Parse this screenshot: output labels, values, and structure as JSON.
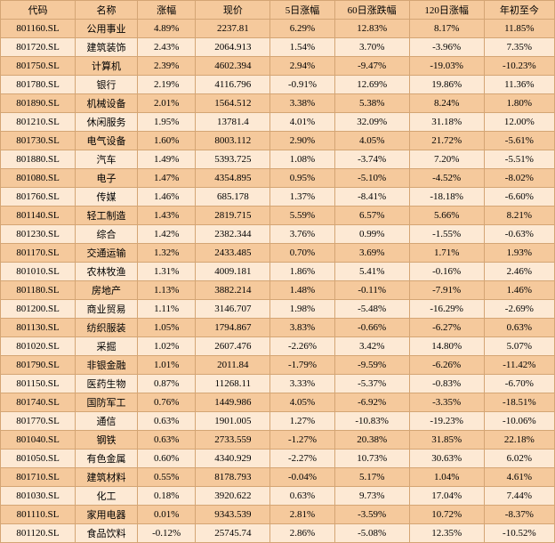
{
  "table": {
    "columns": [
      "代码",
      "名称",
      "涨幅",
      "现价",
      "5日涨幅",
      "60日涨跌幅",
      "120日涨幅",
      "年初至今"
    ],
    "col_classes": [
      "col-code",
      "col-name",
      "col-pct",
      "col-price",
      "col-pct5",
      "col-pct60",
      "col-pct120",
      "col-ytd"
    ],
    "header_bg": "#f5c99c",
    "row_odd_bg": "#fde9d4",
    "row_even_bg": "#f5c99c",
    "border_color": "#d4a574",
    "font_size": 11,
    "rows": [
      [
        "801160.SL",
        "公用事业",
        "4.89%",
        "2237.81",
        "6.29%",
        "12.83%",
        "8.17%",
        "11.85%"
      ],
      [
        "801720.SL",
        "建筑装饰",
        "2.43%",
        "2064.913",
        "1.54%",
        "3.70%",
        "-3.96%",
        "7.35%"
      ],
      [
        "801750.SL",
        "计算机",
        "2.39%",
        "4602.394",
        "2.94%",
        "-9.47%",
        "-19.03%",
        "-10.23%"
      ],
      [
        "801780.SL",
        "银行",
        "2.19%",
        "4116.796",
        "-0.91%",
        "12.69%",
        "19.86%",
        "11.36%"
      ],
      [
        "801890.SL",
        "机械设备",
        "2.01%",
        "1564.512",
        "3.38%",
        "5.38%",
        "8.24%",
        "1.80%"
      ],
      [
        "801210.SL",
        "休闲服务",
        "1.95%",
        "13781.4",
        "4.01%",
        "32.09%",
        "31.18%",
        "12.00%"
      ],
      [
        "801730.SL",
        "电气设备",
        "1.60%",
        "8003.112",
        "2.90%",
        "4.05%",
        "21.72%",
        "-5.61%"
      ],
      [
        "801880.SL",
        "汽车",
        "1.49%",
        "5393.725",
        "1.08%",
        "-3.74%",
        "7.20%",
        "-5.51%"
      ],
      [
        "801080.SL",
        "电子",
        "1.47%",
        "4354.895",
        "0.95%",
        "-5.10%",
        "-4.52%",
        "-8.02%"
      ],
      [
        "801760.SL",
        "传媒",
        "1.46%",
        "685.178",
        "1.37%",
        "-8.41%",
        "-18.18%",
        "-6.60%"
      ],
      [
        "801140.SL",
        "轻工制造",
        "1.43%",
        "2819.715",
        "5.59%",
        "6.57%",
        "5.66%",
        "8.21%"
      ],
      [
        "801230.SL",
        "综合",
        "1.42%",
        "2382.344",
        "3.76%",
        "0.99%",
        "-1.55%",
        "-0.63%"
      ],
      [
        "801170.SL",
        "交通运输",
        "1.32%",
        "2433.485",
        "0.70%",
        "3.69%",
        "1.71%",
        "1.93%"
      ],
      [
        "801010.SL",
        "农林牧渔",
        "1.31%",
        "4009.181",
        "1.86%",
        "5.41%",
        "-0.16%",
        "2.46%"
      ],
      [
        "801180.SL",
        "房地产",
        "1.13%",
        "3882.214",
        "1.48%",
        "-0.11%",
        "-7.91%",
        "1.46%"
      ],
      [
        "801200.SL",
        "商业贸易",
        "1.11%",
        "3146.707",
        "1.98%",
        "-5.48%",
        "-16.29%",
        "-2.69%"
      ],
      [
        "801130.SL",
        "纺织服装",
        "1.05%",
        "1794.867",
        "3.83%",
        "-0.66%",
        "-6.27%",
        "0.63%"
      ],
      [
        "801020.SL",
        "采掘",
        "1.02%",
        "2607.476",
        "-2.26%",
        "3.42%",
        "14.80%",
        "5.07%"
      ],
      [
        "801790.SL",
        "非银金融",
        "1.01%",
        "2011.84",
        "-1.79%",
        "-9.59%",
        "-6.26%",
        "-11.42%"
      ],
      [
        "801150.SL",
        "医药生物",
        "0.87%",
        "11268.11",
        "3.33%",
        "-5.37%",
        "-0.83%",
        "-6.70%"
      ],
      [
        "801740.SL",
        "国防军工",
        "0.76%",
        "1449.986",
        "4.05%",
        "-6.92%",
        "-3.35%",
        "-18.51%"
      ],
      [
        "801770.SL",
        "通信",
        "0.63%",
        "1901.005",
        "1.27%",
        "-10.83%",
        "-19.23%",
        "-10.06%"
      ],
      [
        "801040.SL",
        "钢铁",
        "0.63%",
        "2733.559",
        "-1.27%",
        "20.38%",
        "31.85%",
        "22.18%"
      ],
      [
        "801050.SL",
        "有色金属",
        "0.60%",
        "4340.929",
        "-2.27%",
        "10.73%",
        "30.63%",
        "6.02%"
      ],
      [
        "801710.SL",
        "建筑材料",
        "0.55%",
        "8178.793",
        "-0.04%",
        "5.17%",
        "1.04%",
        "4.61%"
      ],
      [
        "801030.SL",
        "化工",
        "0.18%",
        "3920.622",
        "0.63%",
        "9.73%",
        "17.04%",
        "7.44%"
      ],
      [
        "801110.SL",
        "家用电器",
        "0.01%",
        "9343.539",
        "2.81%",
        "-3.59%",
        "10.72%",
        "-8.37%"
      ],
      [
        "801120.SL",
        "食品饮料",
        "-0.12%",
        "25745.74",
        "2.86%",
        "-5.08%",
        "12.35%",
        "-10.52%"
      ]
    ]
  }
}
